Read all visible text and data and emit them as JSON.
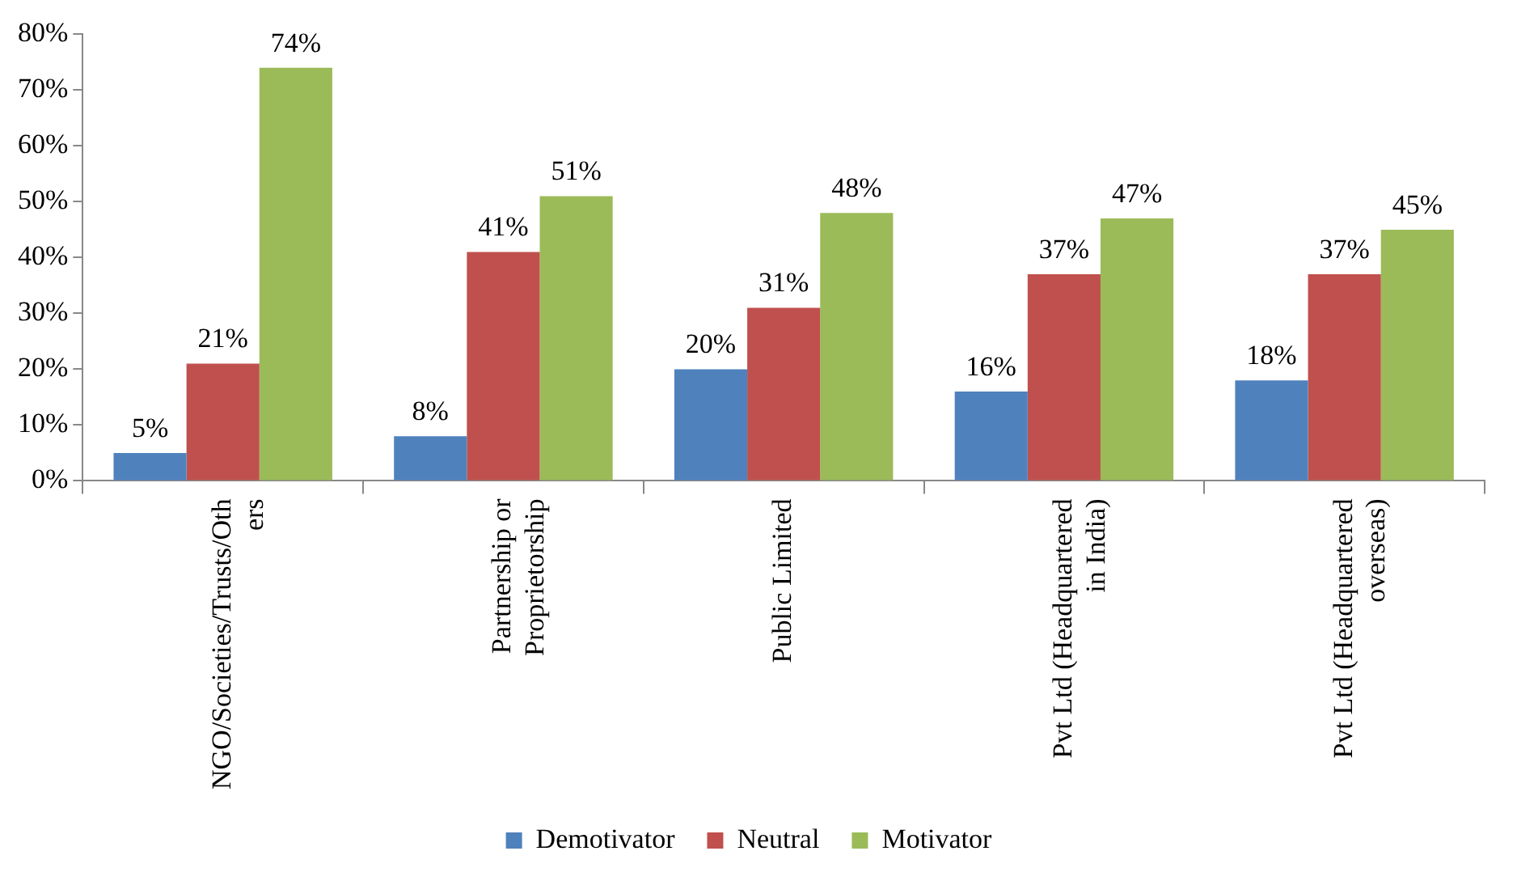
{
  "chart_data": {
    "type": "bar",
    "categories": [
      "NGO/Societies/Trusts/Others",
      "Partnership or Proprietorship",
      "Public Limited",
      "Pvt Ltd (Headquartered in India)",
      "Pvt Ltd (Headquartered overseas)"
    ],
    "series": [
      {
        "name": "Demotivator",
        "color": "#4f81bd",
        "values": [
          5,
          8,
          20,
          16,
          18
        ],
        "value_labels": [
          "5%",
          "8%",
          "20%",
          "16%",
          "18%"
        ]
      },
      {
        "name": "Neutral",
        "color": "#c0504d",
        "values": [
          21,
          41,
          31,
          37,
          37
        ],
        "value_labels": [
          "21%",
          "41%",
          "31%",
          "37%",
          "37%"
        ]
      },
      {
        "name": "Motivator",
        "color": "#9bbb59",
        "values": [
          74,
          51,
          48,
          47,
          45
        ],
        "value_labels": [
          "74%",
          "51%",
          "48%",
          "47%",
          "45%"
        ]
      }
    ],
    "ylim": [
      0,
      80
    ],
    "yticks": [
      {
        "value": 0,
        "label": "0%"
      },
      {
        "value": 10,
        "label": "10%"
      },
      {
        "value": 20,
        "label": "20%"
      },
      {
        "value": 30,
        "label": "30%"
      },
      {
        "value": 40,
        "label": "40%"
      },
      {
        "value": 50,
        "label": "50%"
      },
      {
        "value": 60,
        "label": "60%"
      },
      {
        "value": 70,
        "label": "70%"
      },
      {
        "value": 80,
        "label": "80%"
      }
    ],
    "grid": false,
    "legend": "bottom"
  }
}
